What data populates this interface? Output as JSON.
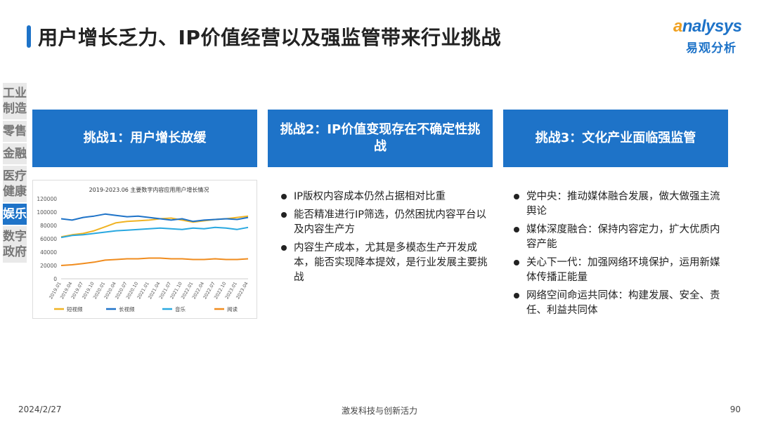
{
  "title": "用户增长乏力、IP价值经营以及强监管带来行业挑战",
  "logo": {
    "word_first": "a",
    "word_rest": "nalysys",
    "sub": "易观分析"
  },
  "side_nav": [
    {
      "label": "工业制造",
      "active": false
    },
    {
      "label": "零售",
      "active": false
    },
    {
      "label": "金融",
      "active": false
    },
    {
      "label": "医疗健康",
      "active": false
    },
    {
      "label": "娱乐",
      "active": true
    },
    {
      "label": "数字政府",
      "active": false
    }
  ],
  "challenges": [
    {
      "title": "挑战1：用户增长放缓"
    },
    {
      "title": "挑战2：IP价值变现存在不确定性挑战"
    },
    {
      "title": "挑战3：文化产业面临强监管"
    }
  ],
  "bullets_2": [
    "IP版权内容成本仍然占据相对比重",
    "能否精准进行IP筛选，仍然困扰内容平台以及内容生产方",
    "内容生产成本，尤其是多模态生产开发成本，能否实现降本提效，是行业发展主要挑战"
  ],
  "bullets_3": [
    "党中央：推动媒体融合发展，做大做强主流舆论",
    "媒体深度融合：保持内容定力，扩大优质内容产能",
    "关心下一代：加强网络环境保护，运用新媒体传播正能量",
    "网络空间命运共同体：构建发展、安全、责任、利益共同体"
  ],
  "chart_data": {
    "type": "line",
    "title": "2019-2023.06 主要数字内容应用用户增长情况",
    "ylim": [
      0,
      120000
    ],
    "yticks": [
      0,
      20000,
      40000,
      60000,
      80000,
      100000,
      120000
    ],
    "categories": [
      "2019.01",
      "2019.04",
      "2019.07",
      "2019.10",
      "2020.01",
      "2020.04",
      "2020.07",
      "2020.10",
      "2021.01",
      "2021.04",
      "2021.07",
      "2021.10",
      "2022.01",
      "2022.04",
      "2022.07",
      "2022.10",
      "2023.01",
      "2023.04"
    ],
    "legend_position": "bottom",
    "series": [
      {
        "name": "短视频",
        "color": "#f0b323",
        "values": [
          63000,
          66000,
          68000,
          72000,
          78000,
          84000,
          86000,
          87000,
          88000,
          90000,
          91000,
          88000,
          85000,
          87000,
          89000,
          90000,
          92000,
          94000
        ]
      },
      {
        "name": "长视频",
        "color": "#1e73c8",
        "values": [
          90000,
          88000,
          92000,
          94000,
          97000,
          95000,
          93000,
          94000,
          92000,
          90000,
          88000,
          90000,
          86000,
          88000,
          89000,
          90000,
          89000,
          92000
        ]
      },
      {
        "name": "音乐",
        "color": "#29a8e0",
        "values": [
          62000,
          65000,
          66000,
          68000,
          70000,
          72000,
          73000,
          74000,
          75000,
          76000,
          75000,
          74000,
          76000,
          75000,
          77000,
          76000,
          74000,
          77000
        ]
      },
      {
        "name": "阅读",
        "color": "#f08c1e",
        "values": [
          20000,
          21000,
          23000,
          25000,
          28000,
          29000,
          30000,
          30000,
          31000,
          31000,
          30000,
          30000,
          29000,
          29000,
          30000,
          29000,
          29000,
          30000
        ]
      }
    ]
  },
  "footer": {
    "date": "2024/2/27",
    "center": "激发科技与创新活力",
    "page": "90"
  }
}
